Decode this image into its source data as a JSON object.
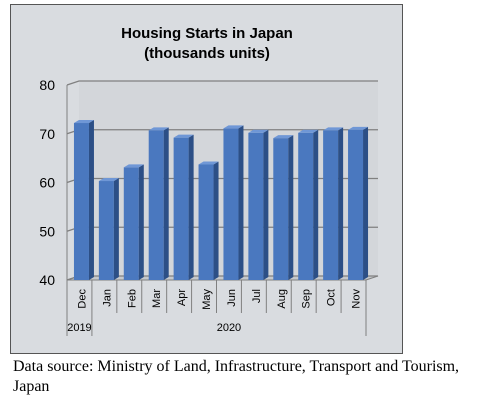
{
  "chart_data": {
    "type": "bar",
    "title_lines": [
      "Housing Starts in Japan",
      "(thousands units)"
    ],
    "categories": [
      "Dec",
      "Jan",
      "Feb",
      "Mar",
      "Apr",
      "May",
      "Jun",
      "Jul",
      "Aug",
      "Sep",
      "Oct",
      "Nov"
    ],
    "values": [
      72.2,
      60.3,
      63.1,
      70.7,
      69.2,
      63.7,
      71.1,
      70.2,
      69.1,
      70.2,
      70.7,
      70.8
    ],
    "year_groups": [
      {
        "label": "2019",
        "count": 1
      },
      {
        "label": "2020",
        "count": 11
      }
    ],
    "ylim": [
      40,
      80
    ],
    "yticks": [
      40,
      50,
      60,
      70,
      80
    ],
    "grid": true,
    "colors": {
      "bar": "#4a78bf",
      "bar_side": "#2c4f86",
      "bar_top": "#6f97d6",
      "background": "#d9dce0",
      "grid": "#808080"
    }
  },
  "source_note": "Data source: Ministry of Land, Infrastructure, Transport and Tourism, Japan"
}
